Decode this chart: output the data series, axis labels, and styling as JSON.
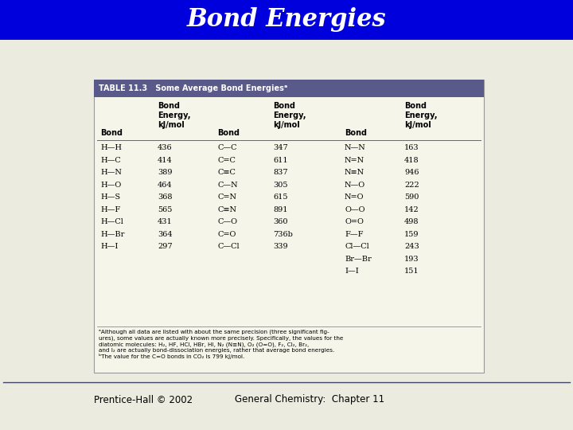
{
  "title": "Bond Energies",
  "title_bg": "#0000dd",
  "title_color": "white",
  "table_header_bg": "#5a5a8a",
  "table_header_text": "TABLE 11.3   Some Average Bond Energiesᵃ",
  "col1": [
    "H—H",
    "H—C",
    "H—N",
    "H—O",
    "H—S",
    "H—F",
    "H—Cl",
    "H—Br",
    "H—I"
  ],
  "val1": [
    "436",
    "414",
    "389",
    "464",
    "368",
    "565",
    "431",
    "364",
    "297"
  ],
  "col2": [
    "C—C",
    "C=C",
    "C≡C",
    "C—N",
    "C=N",
    "C≡N",
    "C—O",
    "C=O",
    "C—Cl"
  ],
  "val2": [
    "347",
    "611",
    "837",
    "305",
    "615",
    "891",
    "360",
    "736b",
    "339"
  ],
  "col3": [
    "N—N",
    "N=N",
    "N≡N",
    "N—O",
    "N=O",
    "O—O",
    "O=O",
    "F—F",
    "Cl—Cl",
    "Br—Br",
    "I—I"
  ],
  "val3": [
    "163",
    "418",
    "946",
    "222",
    "590",
    "142",
    "498",
    "159",
    "243",
    "193",
    "151"
  ],
  "footnote_a": "ᵃAlthough all data are listed with about the same precision (three significant fig-\nures), some values are actually known more precisely. Specifically, the values for the\ndiatomic molecules: H₂, HF, HCl, HBr, HI, N₂ (N≡N), O₂ (O=O), F₂, Cl₂, Br₂,\nand I₂ are actually bond-dissociation energies, rather that average bond energies.",
  "footnote_b": "ᵇThe value for the C=O bonds in CO₂ is 799 kJ/mol.",
  "footer_left": "Prentice-Hall © 2002",
  "footer_right": "General Chemistry:  Chapter 11",
  "bg_color": "#ebebdf",
  "table_bg": "#f5f5ea",
  "table_border": "#999999"
}
